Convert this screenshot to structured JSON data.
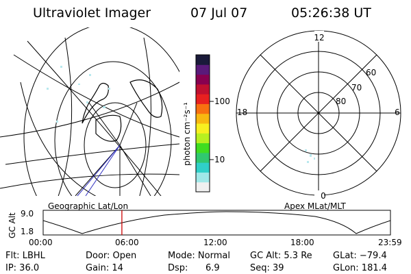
{
  "header": {
    "title": "Ultraviolet Imager",
    "date": "07 Jul 07",
    "time": "05:26:38 UT"
  },
  "colorbar": {
    "label": "photon cm⁻²s⁻¹",
    "ticks": [
      "100",
      "10"
    ],
    "scale": "log",
    "colors": [
      "#f0f0f0",
      "#a0e8e8",
      "#30d0c8",
      "#30c870",
      "#40dd20",
      "#b8f020",
      "#f8f020",
      "#f8b810",
      "#f87010",
      "#e82020",
      "#c01030",
      "#880050",
      "#5a1a7a",
      "#1a1a3a"
    ]
  },
  "geo_map": {
    "label": "Geographic Lat/Lon",
    "projection_lines": "black",
    "track_color": "#3030c0"
  },
  "polar": {
    "label": "Apex MLat/MLT",
    "mlt_labels": {
      "top": "12",
      "bottom": "0",
      "left": "18",
      "right": "6"
    },
    "lat_labels": [
      "60",
      "70",
      "80"
    ]
  },
  "altitude_plot": {
    "ylabel": "GC Alt",
    "yticks": [
      "9.0",
      "1.8"
    ],
    "xticks": [
      "00:00",
      "06:00",
      "12:00",
      "18:00",
      "23:59"
    ],
    "current_time_color": "#cc0000",
    "current_time_hour": 5.44
  },
  "info": {
    "flt": "Flt: LBHL",
    "ip": "IP: 36.0",
    "door": "Door: Open",
    "gain": "Gain: 14",
    "mode": "Mode: Normal",
    "dsp_label": "Dsp:",
    "dsp_value": "6.9",
    "gcalt": "GC Alt: 5.3 Re",
    "seq": "Seq: 39",
    "glat": "GLat: −79.4",
    "glon": "GLon: 181.4"
  }
}
